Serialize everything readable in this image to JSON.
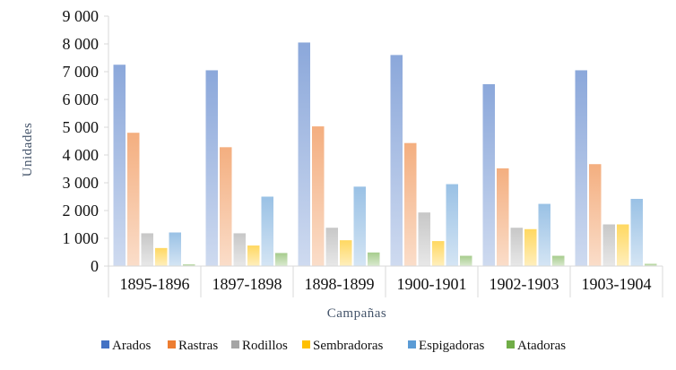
{
  "chart_data": {
    "type": "bar",
    "title": "",
    "xlabel": "Campañas",
    "ylabel": "Unidades",
    "ylim": [
      0,
      9000
    ],
    "yticks": [
      0,
      1000,
      2000,
      3000,
      4000,
      5000,
      6000,
      7000,
      8000,
      9000
    ],
    "ytick_labels": [
      "0",
      "1 000",
      "2 000",
      "3 000",
      "4 000",
      "5 000",
      "6 000",
      "7 000",
      "8 000",
      "9 000"
    ],
    "categories": [
      "1895-1896",
      "1897-1898",
      "1898-1899",
      "1900-1901",
      "1902-1903",
      "1903-1904"
    ],
    "legend_position": "bottom",
    "grid": false,
    "series": [
      {
        "name": "Arados",
        "color": "#4472c4",
        "values": [
          7250,
          7050,
          8050,
          7600,
          6550,
          7050
        ]
      },
      {
        "name": "Rastras",
        "color": "#ed7d31",
        "values": [
          4800,
          4280,
          5030,
          4430,
          3520,
          3670
        ]
      },
      {
        "name": "Rodillos",
        "color": "#a5a5a5",
        "values": [
          1180,
          1180,
          1380,
          1930,
          1380,
          1500
        ]
      },
      {
        "name": "Sembradoras",
        "color": "#ffc000",
        "values": [
          650,
          740,
          930,
          900,
          1330,
          1500
        ]
      },
      {
        "name": "Espigadoras",
        "color": "#5b9bd5",
        "values": [
          1210,
          2500,
          2860,
          2950,
          2240,
          2420
        ]
      },
      {
        "name": "Atadoras",
        "color": "#70ad47",
        "values": [
          60,
          470,
          490,
          370,
          370,
          80
        ]
      }
    ]
  }
}
